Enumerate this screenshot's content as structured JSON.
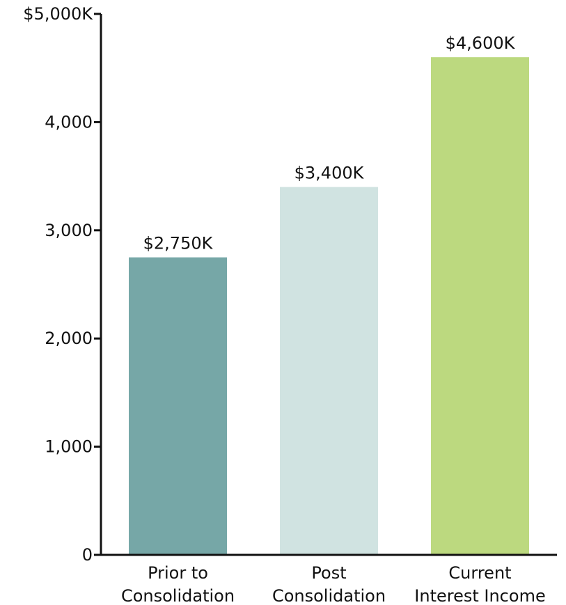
{
  "chart_data": {
    "type": "bar",
    "categories": [
      [
        "Prior to",
        "Consolidation"
      ],
      [
        "Post",
        "Consolidation"
      ],
      [
        "Current",
        "Interest Income"
      ]
    ],
    "values": [
      2750,
      3400,
      4600
    ],
    "value_labels": [
      "$2,750K",
      "$3,400K",
      "$4,600K"
    ],
    "bar_colors": [
      "#76a7a7",
      "#d0e3e1",
      "#bcd97f"
    ],
    "ylim": [
      0,
      5000
    ],
    "yticks": [
      0,
      1000,
      2000,
      3000,
      4000,
      5000
    ],
    "ytick_labels": [
      "0",
      "1,000",
      "2,000",
      "3,000",
      "4,000",
      "$5,000K"
    ],
    "grid": false,
    "title": "",
    "xlabel": "",
    "ylabel": ""
  }
}
